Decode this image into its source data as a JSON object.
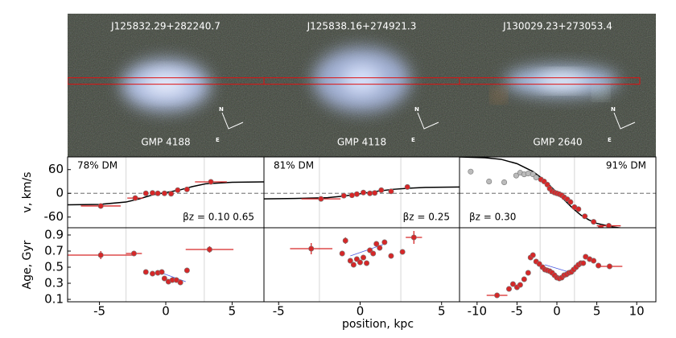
{
  "images": [
    {
      "id": "J125832.29+282240.7",
      "name": "GMP 4188",
      "north": "N",
      "east": "E"
    },
    {
      "id": "J125838.16+274921.3",
      "name": "GMP 4118",
      "north": "N",
      "east": "E"
    },
    {
      "id": "J130029.23+273053.4",
      "name": "GMP 2640",
      "north": "N",
      "east": "E"
    }
  ],
  "chart_data": [
    {
      "type": "velocity",
      "ylabel": "v, km/s",
      "annotation": "78% DM",
      "beta": "βz = 0.10 0.65",
      "color": "#d62728",
      "xlim": [
        -7.4,
        7.4
      ],
      "ylim": [
        -87,
        92
      ],
      "yticks": [
        -60,
        0,
        60
      ],
      "zero_line": 0,
      "vlines": [
        -3.0,
        2.9
      ],
      "points": {
        "x": [
          -4.9,
          -2.3,
          -1.5,
          -1.0,
          -0.6,
          -0.1,
          0.4,
          0.9,
          1.6,
          3.4
        ],
        "values": [
          -32,
          -12,
          0,
          1,
          0,
          0,
          -1,
          8,
          10,
          29
        ],
        "xerr": [
          1.5,
          0.6,
          null,
          null,
          null,
          null,
          null,
          null,
          null,
          1.2
        ]
      },
      "curve": {
        "x": [
          -7.4,
          -5,
          -3,
          -2,
          -1,
          0,
          1,
          2,
          3,
          5,
          7.4
        ],
        "values": [
          -29,
          -28,
          -22,
          -14,
          -4,
          2,
          8,
          17,
          24,
          28,
          29
        ]
      }
    },
    {
      "type": "velocity",
      "annotation": "81% DM",
      "beta": "βz = 0.25",
      "color": "#d62728",
      "xlim": [
        -5.9,
        6.1
      ],
      "ylim": [
        -87,
        92
      ],
      "zero_line": 0,
      "vlines": [
        -2.5,
        2.5
      ],
      "points": {
        "x": [
          -2.4,
          -1.0,
          -0.5,
          -0.2,
          0.2,
          0.6,
          0.9,
          1.3,
          1.9,
          2.9
        ],
        "values": [
          -14,
          -6,
          -5,
          -2,
          2,
          0,
          1,
          8,
          5,
          16
        ],
        "xerr": [
          1.2,
          null,
          null,
          null,
          null,
          null,
          null,
          null,
          null,
          null
        ]
      },
      "curve": {
        "x": [
          -5.9,
          -4,
          -2,
          -1,
          0,
          1,
          2,
          3,
          4,
          6.1
        ],
        "values": [
          -14,
          -13,
          -11,
          -7,
          -1,
          5,
          10,
          13,
          15,
          16
        ]
      }
    },
    {
      "type": "velocity",
      "annotation": "91% DM",
      "beta": "βz = 0.30",
      "color": "#d62728",
      "xlim": [
        -12.2,
        12.4
      ],
      "ylim": [
        -87,
        92
      ],
      "zero_line": 0,
      "vlines": [
        -2.1,
        2.2
      ],
      "gray_points": {
        "x": [
          -10.8,
          -8.5,
          -6.6,
          -5.1,
          -4.6,
          -4.1,
          -3.6,
          -3.0,
          -2.6
        ],
        "values": [
          55,
          30,
          28,
          45,
          52,
          48,
          50,
          48,
          40
        ]
      },
      "points": {
        "x": [
          -2.0,
          -1.6,
          -1.2,
          -0.9,
          -0.6,
          -0.3,
          0,
          0.3,
          0.6,
          0.9,
          1.3,
          1.7,
          2.2,
          2.7,
          3.5,
          4.6,
          5.5,
          6.5
        ],
        "values": [
          35,
          30,
          22,
          12,
          5,
          2,
          0,
          -2,
          -5,
          -10,
          -15,
          -22,
          -35,
          -40,
          -58,
          -72,
          -86,
          -82
        ],
        "xerr": [
          null,
          null,
          null,
          null,
          null,
          null,
          null,
          null,
          null,
          null,
          null,
          null,
          null,
          null,
          null,
          null,
          null,
          1.5
        ]
      },
      "curve": {
        "x": [
          -12.2,
          -9,
          -7,
          -5,
          -3,
          -2,
          -1,
          0,
          1,
          2,
          3,
          4,
          5,
          7,
          9,
          12.4
        ],
        "values": [
          92,
          90,
          86,
          75,
          55,
          40,
          22,
          2,
          -18,
          -38,
          -55,
          -67,
          -76,
          -85,
          -90,
          -92
        ]
      }
    },
    {
      "type": "age",
      "ylabel": "Age, Gyr",
      "color": "#d62728",
      "xlim": [
        -7.4,
        7.4
      ],
      "ylim": [
        0.07,
        0.99
      ],
      "yticks": [
        0.1,
        0.3,
        0.5,
        0.7,
        0.9
      ],
      "xticks": [
        -5,
        0,
        5
      ],
      "vlines": [
        -3.0,
        2.9
      ],
      "points": {
        "x": [
          -4.9,
          -2.4,
          -1.5,
          -1.0,
          -0.6,
          -0.3,
          -0.1,
          0.2,
          0.5,
          0.8,
          1.1,
          1.6,
          3.3
        ],
        "values": [
          0.65,
          0.67,
          0.44,
          0.42,
          0.43,
          0.44,
          0.36,
          0.32,
          0.34,
          0.34,
          0.31,
          0.46,
          0.72
        ],
        "xerr": [
          2.5,
          0.6,
          null,
          null,
          null,
          null,
          null,
          null,
          null,
          null,
          null,
          null,
          1.8
        ],
        "yerr": [
          0.05,
          null,
          null,
          null,
          null,
          null,
          null,
          null,
          null,
          null,
          null,
          null,
          0.04
        ]
      },
      "trend": {
        "x": [
          -0.5,
          1.5
        ],
        "values": [
          0.44,
          0.32
        ]
      }
    },
    {
      "type": "age",
      "xlabel": "position, kpc",
      "color": "#d62728",
      "xlim": [
        -5.9,
        6.1
      ],
      "ylim": [
        0.07,
        0.99
      ],
      "xticks": [
        -5,
        0,
        5
      ],
      "vlines": [
        -2.5,
        2.5
      ],
      "points": {
        "x": [
          -3.0,
          -1.1,
          -0.9,
          -0.6,
          -0.4,
          -0.2,
          0,
          0.2,
          0.4,
          0.6,
          0.8,
          1.0,
          1.2,
          1.5,
          1.9,
          2.6,
          3.3
        ],
        "values": [
          0.73,
          0.67,
          0.83,
          0.58,
          0.53,
          0.6,
          0.56,
          0.62,
          0.55,
          0.71,
          0.67,
          0.79,
          0.74,
          0.81,
          0.64,
          0.69,
          0.87
        ],
        "xerr": [
          1.3,
          null,
          null,
          null,
          null,
          null,
          null,
          null,
          null,
          null,
          null,
          null,
          null,
          null,
          null,
          null,
          0.5
        ],
        "yerr": [
          0.07,
          null,
          0.04,
          null,
          null,
          null,
          null,
          null,
          null,
          null,
          null,
          null,
          null,
          null,
          null,
          null,
          0.08
        ]
      },
      "trend": {
        "x": [
          -0.6,
          1.4
        ],
        "values": [
          0.64,
          0.78
        ]
      }
    },
    {
      "type": "age",
      "color": "#d62728",
      "xlim": [
        -12.2,
        12.4
      ],
      "ylim": [
        0.07,
        0.99
      ],
      "xticks": [
        -10,
        -5,
        0,
        5,
        10
      ],
      "vlines": [
        -2.1,
        2.2
      ],
      "points": {
        "x": [
          -7.5,
          -6.0,
          -5.5,
          -5.0,
          -4.6,
          -4.1,
          -3.6,
          -3.3,
          -3.0,
          -2.6,
          -2.2,
          -1.8,
          -1.5,
          -1.2,
          -0.9,
          -0.6,
          -0.3,
          0,
          0.3,
          0.6,
          0.9,
          1.2,
          1.5,
          1.8,
          2.1,
          2.4,
          2.7,
          3.0,
          3.3,
          3.6,
          4.1,
          4.6,
          5.2,
          6.6
        ],
        "values": [
          0.15,
          0.23,
          0.29,
          0.25,
          0.28,
          0.35,
          0.43,
          0.62,
          0.65,
          0.57,
          0.54,
          0.5,
          0.47,
          0.46,
          0.45,
          0.43,
          0.4,
          0.37,
          0.36,
          0.37,
          0.4,
          0.41,
          0.43,
          0.44,
          0.47,
          0.5,
          0.53,
          0.55,
          0.55,
          0.63,
          0.6,
          0.58,
          0.52,
          0.51
        ],
        "xerr": [
          1.3,
          null,
          null,
          null,
          null,
          null,
          null,
          null,
          null,
          null,
          null,
          null,
          null,
          null,
          null,
          null,
          null,
          null,
          null,
          null,
          null,
          null,
          null,
          null,
          null,
          null,
          null,
          null,
          null,
          null,
          null,
          null,
          null,
          1.6
        ]
      },
      "trend": {
        "x": [
          -1.5,
          1.5
        ],
        "values": [
          0.53,
          0.44
        ]
      }
    }
  ]
}
